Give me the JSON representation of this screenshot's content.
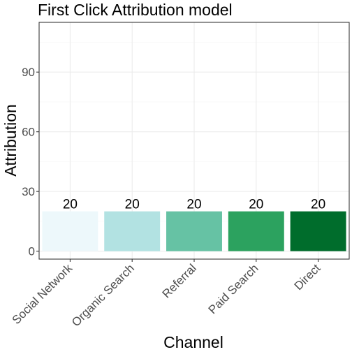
{
  "chart_data": {
    "type": "bar",
    "title": "First Click Attribution model",
    "xlabel": "Channel",
    "ylabel": "Attribution",
    "categories": [
      "Social Network",
      "Organic Search",
      "Referral",
      "Paid Search",
      "Direct"
    ],
    "values": [
      20,
      20,
      20,
      20,
      20
    ],
    "data_labels": [
      "20",
      "20",
      "20",
      "20",
      "20"
    ],
    "bar_colors": [
      "#edf8fb",
      "#b2e2e2",
      "#66c2a4",
      "#2ca25f",
      "#006d2c"
    ],
    "ylim": [
      -4,
      115
    ],
    "yticks": [
      0,
      30,
      60,
      90
    ],
    "ytick_labels": [
      "0",
      "30",
      "60",
      "90"
    ],
    "grid": true,
    "legend": "none"
  }
}
